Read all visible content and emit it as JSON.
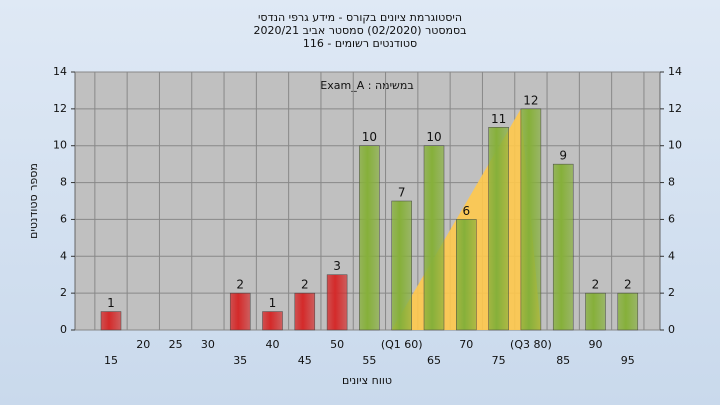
{
  "chart_data": {
    "type": "bar",
    "title": [
      "היסטוגרמת ציונים בקורס - מידע גרפי הנדסי",
      "בסמסטר (02/2020) סמסטר אביב 2020/21",
      "סטודנטים רשומים - 116"
    ],
    "annotation": "Exam_A : במשימה",
    "xlabel": "טווח ציונים",
    "ylabel": "מספר סטודנטים",
    "categories": [
      "15",
      "20",
      "25",
      "30",
      "35",
      "40",
      "45",
      "50",
      "55",
      "(Q1 60)",
      "65",
      "70",
      "75",
      "(Q3 80)",
      "85",
      "90",
      "95"
    ],
    "values": [
      1,
      0,
      0,
      0,
      2,
      1,
      2,
      3,
      10,
      7,
      10,
      6,
      11,
      12,
      9,
      2,
      2
    ],
    "colors": [
      "#d42a2a",
      "#d42a2a",
      "#d42a2a",
      "#d42a2a",
      "#d42a2a",
      "#d42a2a",
      "#d42a2a",
      "#d42a2a",
      "#86b03a",
      "#86b03a",
      "#86b03a",
      "#86b03a",
      "#86b03a",
      "#86b03a",
      "#86b03a",
      "#86b03a",
      "#86b03a"
    ],
    "ylim": [
      0,
      14
    ],
    "yticks": [
      0,
      2,
      4,
      6,
      8,
      10,
      12,
      14
    ],
    "grid": true
  }
}
